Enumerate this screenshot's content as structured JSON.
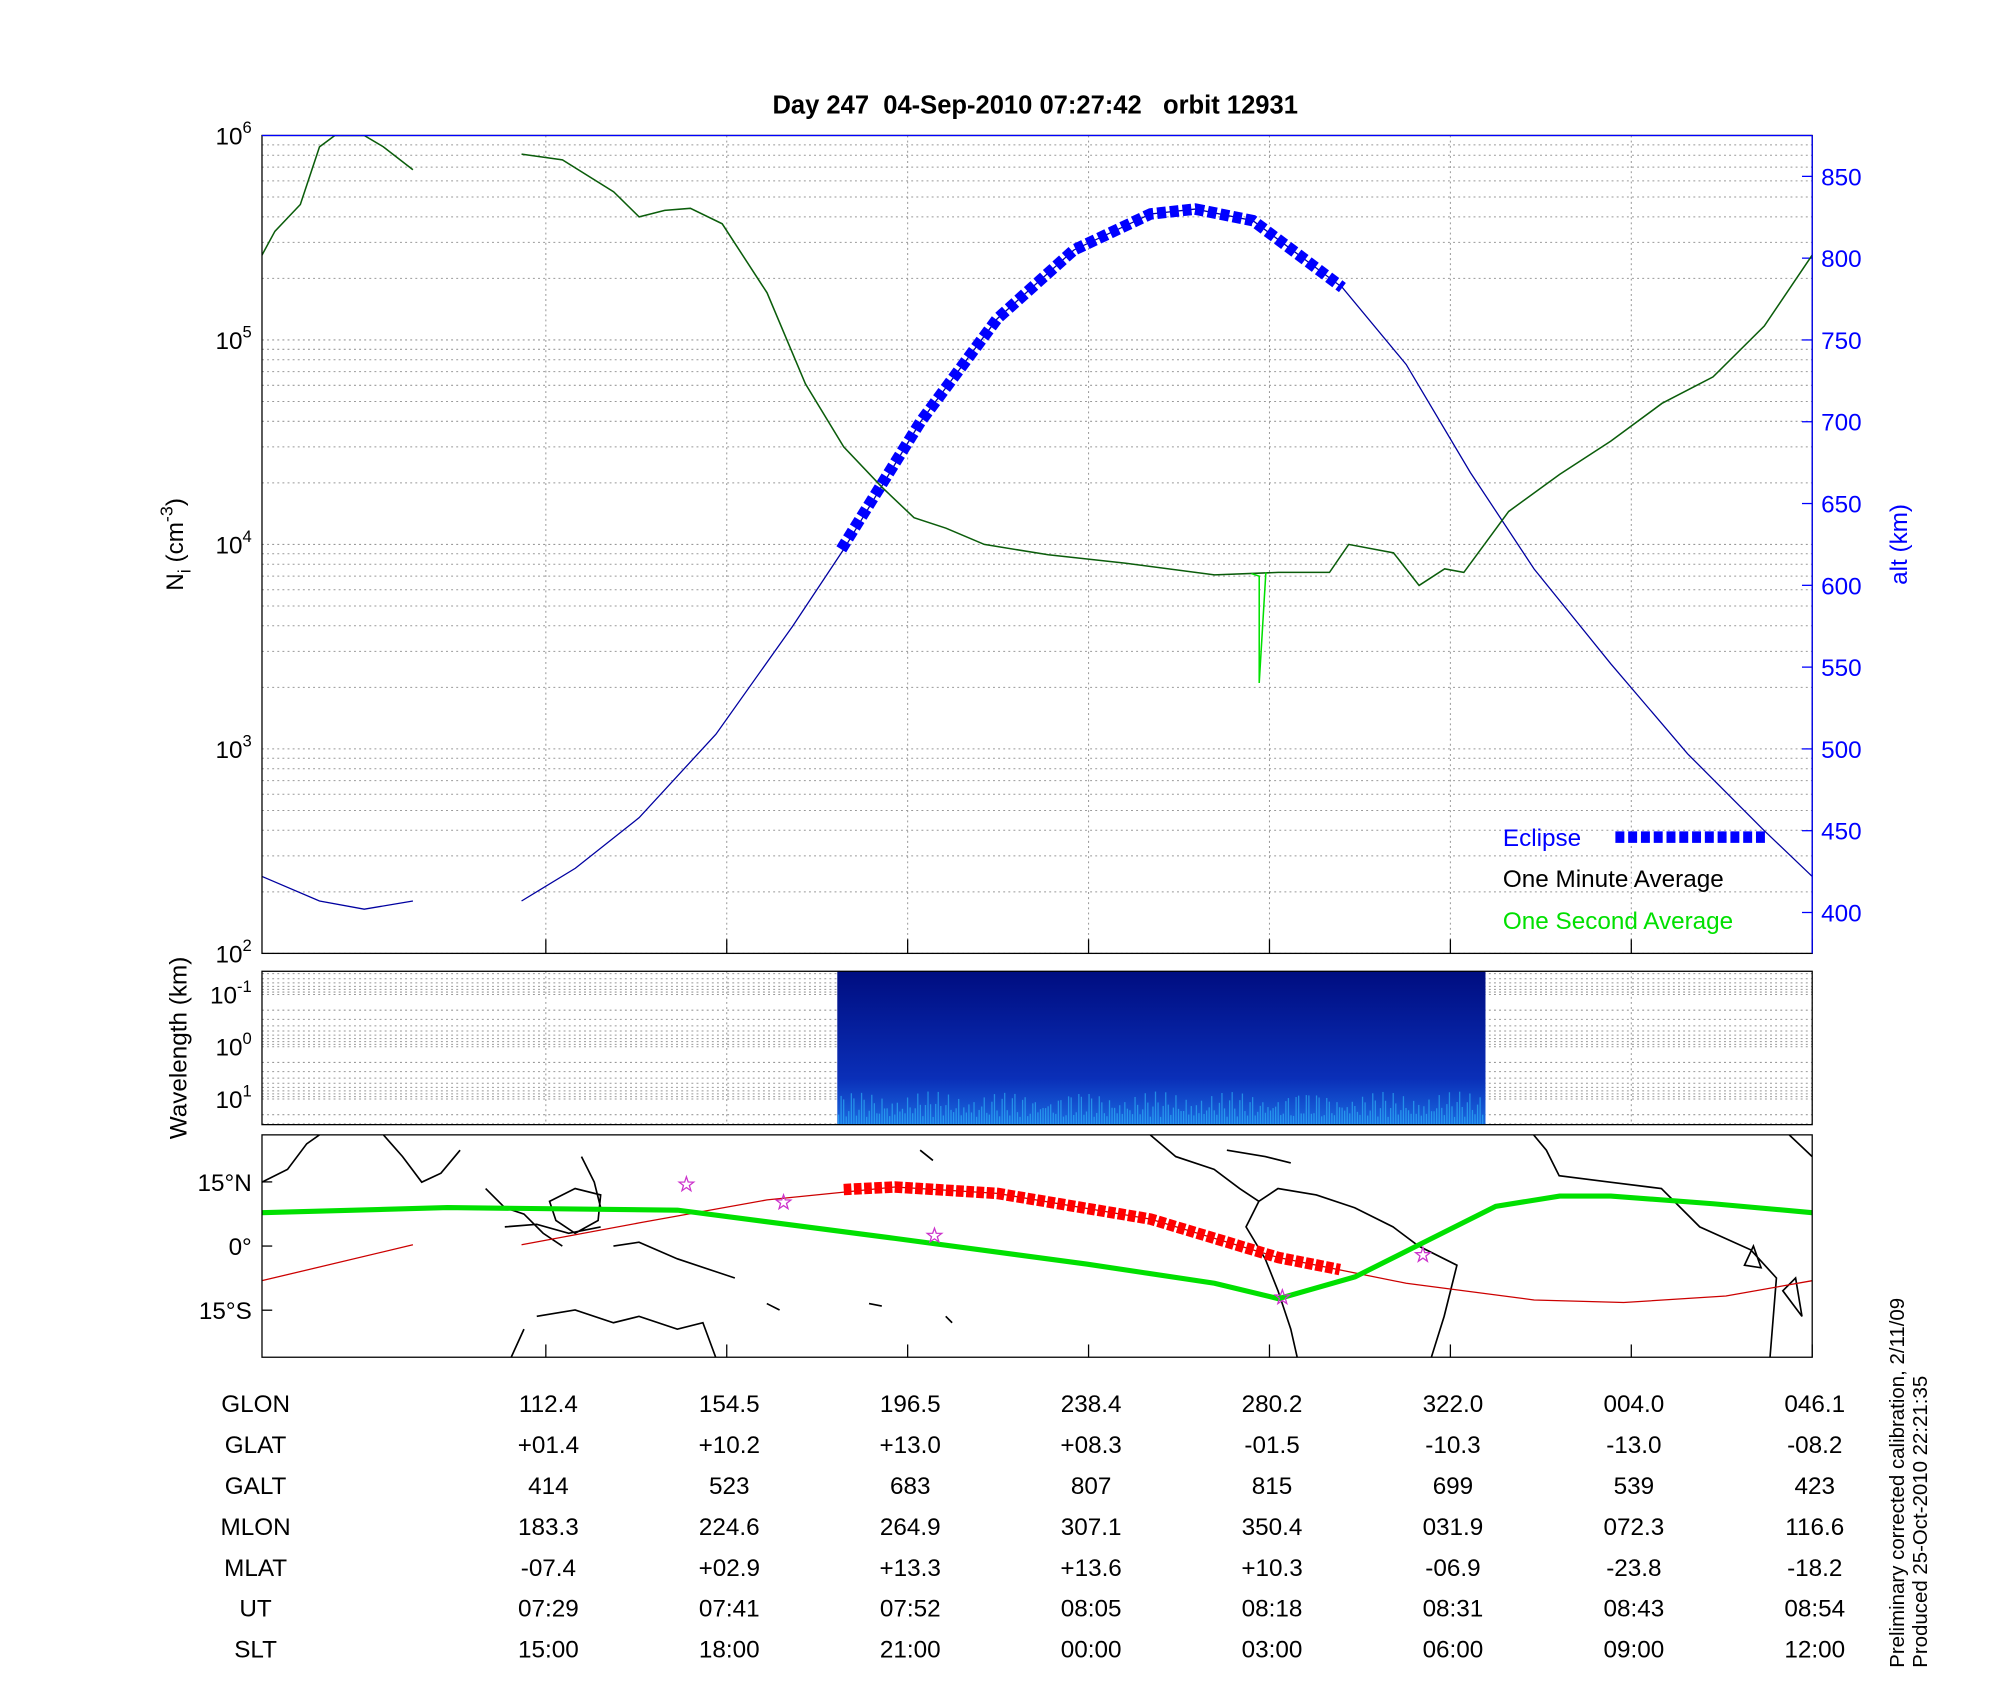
{
  "chart_data": [
    {
      "type": "line",
      "title": "Day 247  04-Sep-2010 07:27:42   orbit 12931",
      "ylabel": [
        "N",
        "i",
        " (cm",
        "-3",
        ")"
      ],
      "y2label": "alt (km)",
      "log_y": true,
      "grid": true,
      "xlim": [
        -1.569,
        7
      ],
      "xticks": [
        0,
        1,
        2,
        3,
        4,
        5,
        6,
        7
      ],
      "ylim": [
        100,
        1000000
      ],
      "yticks": [
        {
          "value": 100,
          "label": "10",
          "exponent": "2"
        },
        {
          "value": 1000,
          "label": "10",
          "exponent": "3"
        },
        {
          "value": 10000,
          "label": "10",
          "exponent": "4"
        },
        {
          "value": 100000,
          "label": "10",
          "exponent": "5"
        },
        {
          "value": 1000000,
          "label": "10",
          "exponent": "6"
        }
      ],
      "y2lim": [
        375,
        875
      ],
      "y2ticks": [
        400,
        450,
        500,
        550,
        600,
        650,
        700,
        750,
        800,
        850
      ],
      "altitude": {
        "color": "#0000a0",
        "axis": "y2",
        "x": [
          -1.569,
          -1.251,
          -1.004,
          -0.735,
          -0.4,
          -0.134,
          0.163,
          0.516,
          0.94,
          1.364,
          1.647,
          2.071,
          2.495,
          2.919,
          3.343,
          3.59,
          3.908,
          4.403,
          4.756,
          5.11,
          5.463,
          5.887,
          6.311,
          6.735,
          7.0
        ],
        "values": [
          422,
          407,
          402,
          407,
          null,
          407,
          427,
          458,
          509,
          575,
          622,
          700,
          763,
          805,
          827,
          830,
          823,
          782,
          735,
          669,
          610,
          552,
          497,
          450,
          422
        ]
      },
      "series": [
        {
          "name": "Eclipse",
          "color": "#0000ff",
          "axis": "y2",
          "x": [
            1.633,
            2.071,
            2.495,
            2.919,
            3.343,
            3.59,
            3.908,
            4.403
          ],
          "values": [
            622,
            700,
            763,
            805,
            827,
            830,
            823,
            782
          ]
        },
        {
          "name": "One Minute Average",
          "color": "#0b5d0b",
          "x": [
            -1.569,
            -1.498,
            -1.357,
            -1.251,
            -1.166,
            -1.004,
            -0.898,
            -0.735,
            -0.4,
            -0.134,
            0.092,
            0.375,
            0.516,
            0.657,
            0.799,
            0.975,
            1.223,
            1.435,
            1.647,
            1.859,
            2.035,
            2.212,
            2.424,
            2.777,
            3.201,
            3.696,
            4.049,
            4.332,
            4.438,
            4.686,
            4.827,
            4.968,
            5.074,
            5.322,
            5.604,
            5.887,
            6.17,
            6.452,
            6.735,
            7.0
          ],
          "values": [
            260000,
            340000,
            460000,
            880000,
            1000000,
            1000000,
            880000,
            680000,
            null,
            810000,
            760000,
            530000,
            400000,
            430000,
            440000,
            370000,
            170000,
            61000,
            30000,
            19000,
            13500,
            12000,
            10000,
            8900,
            8100,
            7100,
            7300,
            7300,
            10000,
            9100,
            6300,
            7600,
            7300,
            14500,
            22000,
            32000,
            49000,
            66000,
            117000,
            260000
          ]
        },
        {
          "name": "One Second Average",
          "color": "#00e000",
          "x": [
            3.9,
            3.943,
            3.943,
            3.98
          ],
          "values": [
            7200,
            7000,
            2100,
            7300
          ]
        }
      ]
    },
    {
      "type": "heatmap",
      "ylabel": "Wavelength (km)",
      "log_y": true,
      "y_inverted": true,
      "grid": true,
      "xlim": [
        -1.569,
        7
      ],
      "xticks": [
        0,
        1,
        2,
        3,
        4,
        5,
        6,
        7
      ],
      "ylim": [
        0.036,
        31
      ],
      "yticks": [
        {
          "value": 0.1,
          "label": "10",
          "exponent": "-1"
        },
        {
          "value": 1,
          "label": "10",
          "exponent": "0"
        },
        {
          "value": 10,
          "label": "10",
          "exponent": "1"
        }
      ],
      "x_range": [
        1.611,
        5.194
      ]
    },
    {
      "type": "map",
      "xlim": [
        -1.569,
        7
      ],
      "xticks": [
        0,
        1,
        2,
        3,
        4,
        5,
        6,
        7
      ],
      "ylim": [
        -26,
        26
      ],
      "yticks": [
        {
          "value": 15,
          "label": "15°N"
        },
        {
          "value": 0,
          "label": "0°"
        },
        {
          "value": -15,
          "label": "15°S"
        }
      ],
      "series": [
        {
          "color": "#cc0000",
          "width": 1,
          "x": [
            -1.569,
            -0.735,
            -0.4,
            -0.134,
            0.516,
            1.223,
            1.929,
            2.495,
            3.343,
            4.049,
            4.756,
            5.463,
            5.958,
            6.523,
            7.0
          ],
          "values": [
            -8.1,
            0.3,
            null,
            0.3,
            5.4,
            10.8,
            13.8,
            12.3,
            6.3,
            -2.7,
            -8.7,
            -12.6,
            -13.2,
            -11.7,
            -8.1
          ]
        },
        {
          "color": "#ff0000",
          "width": 9,
          "dashed": true,
          "x": [
            1.647,
            1.929,
            2.495,
            3.343,
            4.049,
            4.389
          ],
          "values": [
            13.2,
            13.8,
            12.3,
            6.3,
            -2.7,
            -5.5
          ]
        },
        {
          "color": "#00e000",
          "width": 4,
          "x": [
            -1.569,
            -0.544,
            0.728,
            1.929,
            2.989,
            3.696,
            4.049,
            4.473,
            4.827,
            5.251,
            5.604,
            5.887,
            6.452,
            7.0
          ],
          "values": [
            7.8,
            9,
            8.4,
            1.8,
            -4.2,
            -8.7,
            -12.3,
            -7.2,
            0.3,
            9.3,
            11.7,
            11.7,
            9.9,
            7.8
          ]
        }
      ],
      "stars": {
        "color": "#cc33cc",
        "x": [
          0.777,
          1.314,
          2.148,
          4.071,
          4.848
        ],
        "values": [
          14.4,
          10.2,
          2.4,
          -12,
          -2.1
        ]
      }
    }
  ],
  "table": {
    "rows": [
      {
        "label": "GLON",
        "values": [
          "112.4",
          "154.5",
          "196.5",
          "238.4",
          "280.2",
          "322.0",
          "004.0",
          "046.1"
        ]
      },
      {
        "label": "GLAT",
        "values": [
          "+01.4",
          "+10.2",
          "+13.0",
          "+08.3",
          "-01.5",
          "-10.3",
          "-13.0",
          "-08.2"
        ]
      },
      {
        "label": "GALT",
        "values": [
          "414",
          "523",
          "683",
          "807",
          "815",
          "699",
          "539",
          "423"
        ]
      },
      {
        "label": "MLON",
        "values": [
          "183.3",
          "224.6",
          "264.9",
          "307.1",
          "350.4",
          "031.9",
          "072.3",
          "116.6"
        ]
      },
      {
        "label": "MLAT",
        "values": [
          "-07.4",
          "+02.9",
          "+13.3",
          "+13.6",
          "+10.3",
          "-06.9",
          "-23.8",
          "-18.2"
        ]
      },
      {
        "label": "UT",
        "values": [
          "07:29",
          "07:41",
          "07:52",
          "08:05",
          "08:18",
          "08:31",
          "08:43",
          "08:54"
        ]
      },
      {
        "label": "SLT",
        "values": [
          "15:00",
          "18:00",
          "21:00",
          "00:00",
          "03:00",
          "06:00",
          "09:00",
          "12:00"
        ]
      }
    ]
  },
  "footnotes": [
    "Preliminary corrected calibration, 2/11/09",
    "Produced 25-Oct-2010 22:21:35"
  ]
}
